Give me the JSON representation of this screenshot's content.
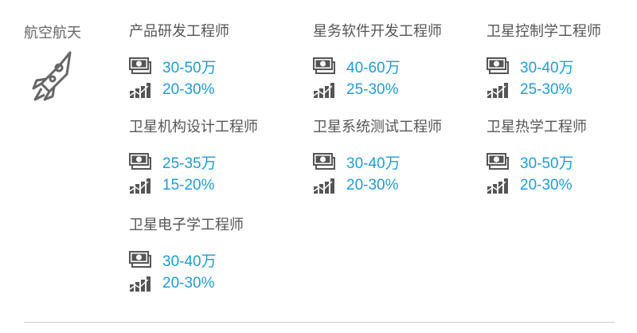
{
  "category": {
    "label": "航空航天",
    "icon": "rocket-icon"
  },
  "colors": {
    "accent": "#1a9ed9",
    "text": "#555555"
  },
  "jobs": [
    {
      "title": "产品研发工程师",
      "salary": "30-50万",
      "growth": "20-30%"
    },
    {
      "title": "星务软件开发工程师",
      "salary": "40-60万",
      "growth": "25-30%"
    },
    {
      "title": "卫星控制学工程师",
      "salary": "30-40万",
      "growth": "25-30%"
    },
    {
      "title": "卫星机构设计工程师",
      "salary": "25-35万",
      "growth": "15-20%"
    },
    {
      "title": "卫星系统测试工程师",
      "salary": "30-40万",
      "growth": "20-30%"
    },
    {
      "title": "卫星热学工程师",
      "salary": "30-50万",
      "growth": "20-30%"
    },
    {
      "title": "卫星电子学工程师",
      "salary": "30-40万",
      "growth": "20-30%"
    }
  ]
}
